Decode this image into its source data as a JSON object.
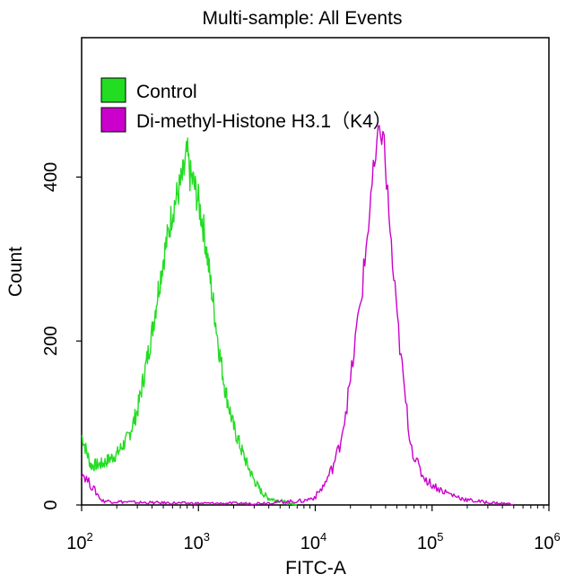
{
  "chart_data": {
    "type": "line",
    "title": "Multi-sample: All Events",
    "xlabel": "FITC-A",
    "ylabel": "Count",
    "x_scale": "log",
    "xlim": [
      100,
      1000000
    ],
    "ylim": [
      0,
      570
    ],
    "x_ticks": [
      {
        "value": 100,
        "base": "10",
        "exp": "2"
      },
      {
        "value": 1000,
        "base": "10",
        "exp": "3"
      },
      {
        "value": 10000,
        "base": "10",
        "exp": "4"
      },
      {
        "value": 100000,
        "base": "10",
        "exp": "5"
      },
      {
        "value": 1000000,
        "base": "10",
        "exp": "6"
      }
    ],
    "y_ticks": [
      0,
      200,
      400
    ],
    "grid": false,
    "legend_position": "top-left",
    "series": [
      {
        "name": "Control",
        "color": "#22dd22",
        "x": [
          100,
          120,
          150,
          200,
          250,
          300,
          350,
          400,
          450,
          500,
          550,
          600,
          650,
          700,
          750,
          800,
          850,
          900,
          1000,
          1100,
          1200,
          1300,
          1400,
          1500,
          1700,
          2000,
          2300,
          2600,
          3000,
          3500,
          4000,
          5000,
          6000,
          7000
        ],
        "y": [
          85,
          48,
          50,
          62,
          82,
          115,
          165,
          210,
          260,
          300,
          330,
          360,
          375,
          390,
          405,
          430,
          400,
          395,
          370,
          340,
          300,
          260,
          225,
          190,
          140,
          95,
          70,
          50,
          30,
          15,
          8,
          5,
          2,
          0
        ]
      },
      {
        "name": "Di-methyl-Histone  H3.1（K4）",
        "color": "#cc00cc",
        "x": [
          100,
          150,
          300,
          1000,
          3000,
          8000,
          10000,
          12000,
          14000,
          16000,
          18000,
          20000,
          22000,
          25000,
          28000,
          30000,
          33000,
          36000,
          38000,
          40000,
          43000,
          46000,
          50000,
          55000,
          60000,
          65000,
          70000,
          80000,
          90000,
          100000,
          120000,
          150000,
          200000,
          300000,
          500000
        ],
        "y": [
          40,
          5,
          3,
          2,
          2,
          5,
          10,
          25,
          45,
          70,
          110,
          150,
          200,
          260,
          330,
          380,
          420,
          460,
          455,
          410,
          350,
          290,
          230,
          170,
          120,
          80,
          60,
          40,
          30,
          25,
          18,
          12,
          6,
          3,
          1
        ]
      }
    ]
  }
}
